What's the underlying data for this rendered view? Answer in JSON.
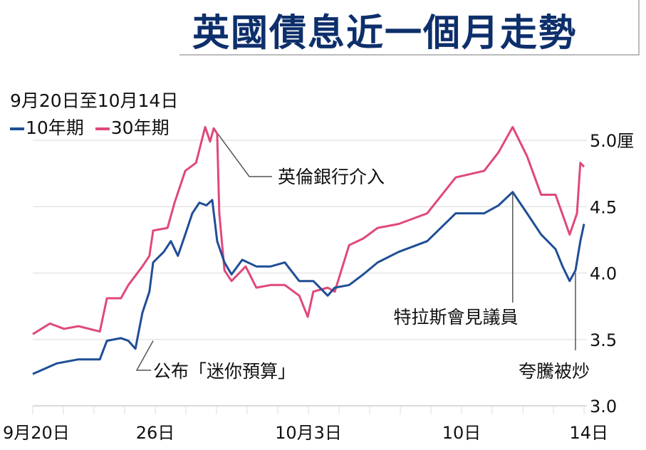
{
  "title": "英國債息近一個月走勢",
  "chart_data": {
    "type": "line",
    "title": "英國債息近一個月走勢",
    "subtitle": "9月20日至10月14日",
    "xlabel": "",
    "ylabel": "",
    "x_unit": "trading days since 9月20日",
    "xlim": [
      0,
      18
    ],
    "ylim": [
      3.0,
      5.0
    ],
    "grid": true,
    "legend_placement": "top-left",
    "x_ticks": [
      {
        "day": 0,
        "label": "9月20日"
      },
      {
        "day": 4,
        "label": "26日"
      },
      {
        "day": 9,
        "label": "10月3日"
      },
      {
        "day": 14,
        "label": "10日"
      },
      {
        "day": 18,
        "label": "14日"
      }
    ],
    "y_ticks": [
      {
        "value": 3.0,
        "label": "3.0"
      },
      {
        "value": 3.5,
        "label": "3.5"
      },
      {
        "value": 4.0,
        "label": "4.0"
      },
      {
        "value": 4.5,
        "label": "4.5"
      },
      {
        "value": 5.0,
        "label": "5.0厘"
      }
    ],
    "series": [
      {
        "name": "10年期",
        "color": "#1f4e96",
        "points": [
          [
            0,
            3.24
          ],
          [
            0.79,
            3.32
          ],
          [
            1.49,
            3.35
          ],
          [
            2.19,
            3.35
          ],
          [
            2.42,
            3.49
          ],
          [
            2.88,
            3.51
          ],
          [
            3.12,
            3.49
          ],
          [
            3.35,
            3.43
          ],
          [
            3.58,
            3.7
          ],
          [
            3.81,
            3.86
          ],
          [
            3.93,
            4.08
          ],
          [
            4.28,
            4.16
          ],
          [
            4.51,
            4.24
          ],
          [
            4.74,
            4.13
          ],
          [
            4.98,
            4.29
          ],
          [
            5.21,
            4.45
          ],
          [
            5.44,
            4.53
          ],
          [
            5.67,
            4.51
          ],
          [
            5.86,
            4.55
          ],
          [
            6.02,
            4.24
          ],
          [
            6.26,
            4.08
          ],
          [
            6.49,
            3.99
          ],
          [
            6.84,
            4.1
          ],
          [
            7.3,
            4.05
          ],
          [
            7.77,
            4.05
          ],
          [
            8.23,
            4.08
          ],
          [
            8.7,
            3.94
          ],
          [
            9.16,
            3.94
          ],
          [
            9.63,
            3.83
          ],
          [
            9.86,
            3.89
          ],
          [
            10.33,
            3.91
          ],
          [
            10.79,
            3.99
          ],
          [
            11.26,
            4.08
          ],
          [
            11.95,
            4.16
          ],
          [
            12.88,
            4.24
          ],
          [
            13.81,
            4.45
          ],
          [
            14.74,
            4.45
          ],
          [
            15.21,
            4.51
          ],
          [
            15.67,
            4.61
          ],
          [
            16.14,
            4.45
          ],
          [
            16.6,
            4.29
          ],
          [
            17.07,
            4.18
          ],
          [
            17.3,
            4.05
          ],
          [
            17.53,
            3.94
          ],
          [
            17.72,
            4.02
          ],
          [
            17.88,
            4.24
          ],
          [
            18,
            4.37
          ]
        ]
      },
      {
        "name": "30年期",
        "color": "#e0487a",
        "points": [
          [
            0,
            3.54
          ],
          [
            0.56,
            3.62
          ],
          [
            1.02,
            3.58
          ],
          [
            1.49,
            3.6
          ],
          [
            2.19,
            3.56
          ],
          [
            2.42,
            3.81
          ],
          [
            2.88,
            3.81
          ],
          [
            3.12,
            3.91
          ],
          [
            3.58,
            4.05
          ],
          [
            3.81,
            4.13
          ],
          [
            3.93,
            4.32
          ],
          [
            4.4,
            4.34
          ],
          [
            4.63,
            4.53
          ],
          [
            4.98,
            4.77
          ],
          [
            5.33,
            4.83
          ],
          [
            5.63,
            5.1
          ],
          [
            5.79,
            4.99
          ],
          [
            5.91,
            5.09
          ],
          [
            6.02,
            5.05
          ],
          [
            6.09,
            4.45
          ],
          [
            6.26,
            4.02
          ],
          [
            6.49,
            3.94
          ],
          [
            6.95,
            4.05
          ],
          [
            7.3,
            3.89
          ],
          [
            7.77,
            3.91
          ],
          [
            8.23,
            3.91
          ],
          [
            8.7,
            3.83
          ],
          [
            8.98,
            3.67
          ],
          [
            9.16,
            3.86
          ],
          [
            9.63,
            3.89
          ],
          [
            9.86,
            3.86
          ],
          [
            10.33,
            4.21
          ],
          [
            10.79,
            4.26
          ],
          [
            11.26,
            4.34
          ],
          [
            11.95,
            4.37
          ],
          [
            12.88,
            4.45
          ],
          [
            13.81,
            4.72
          ],
          [
            14.74,
            4.77
          ],
          [
            15.21,
            4.91
          ],
          [
            15.67,
            5.1
          ],
          [
            16.14,
            4.88
          ],
          [
            16.6,
            4.59
          ],
          [
            17.07,
            4.59
          ],
          [
            17.53,
            4.29
          ],
          [
            17.77,
            4.45
          ],
          [
            17.88,
            4.83
          ],
          [
            18,
            4.8
          ]
        ]
      }
    ],
    "annotations": [
      {
        "text": "英倫銀行介入",
        "day": 5.91,
        "value": 5.09
      },
      {
        "text": "公布「迷你預算」",
        "day": 3.0,
        "value": 3.49
      },
      {
        "text": "特拉斯會見議員",
        "day": 15.67,
        "value": 4.61
      },
      {
        "text": "夸騰被炒",
        "day": 17.6,
        "value": 4.0
      }
    ]
  }
}
